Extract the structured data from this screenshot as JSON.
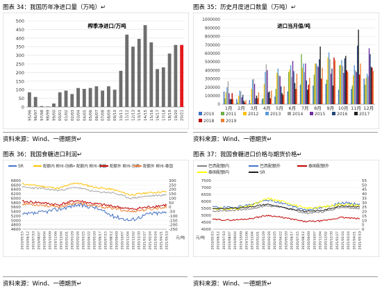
{
  "captions": {
    "fig34": "图表 34：我国历年净进口量（万吨）↵",
    "fig35": "图表 35：历史月度进口数量（万吨）↵",
    "fig36": "图表 36：我国食糖进口利润↵",
    "fig37": "图表 37：我国食糖进口价格与期货价格↵"
  },
  "sources": {
    "s1": "资料来源：Wind、一德期货↵",
    "s2": "资料来源：Wind、一德期货↵",
    "s3": "资料来源：Wind、一德期货↵",
    "s4": "资料来源：Wind、一德期货↵"
  },
  "chart_data": [
    {
      "id": "fig34",
      "type": "bar",
      "title": "榨季净进口/万吨",
      "categories": [
        "95/96",
        "96/97",
        "97/98",
        "98/99",
        "99/00",
        "00/01",
        "01/02",
        "02/03",
        "03/04",
        "04/05",
        "05/06",
        "06/07",
        "07/08",
        "08/09",
        "09/10",
        "10/11",
        "11/12",
        "12/13",
        "13/14",
        "14/15",
        "15/16",
        "16/17",
        "17/18",
        "18/19",
        "19/20",
        "20/21"
      ],
      "values": [
        85,
        58,
        5,
        3,
        20,
        85,
        95,
        75,
        110,
        105,
        110,
        120,
        95,
        120,
        100,
        210,
        420,
        350,
        395,
        475,
        375,
        220,
        230,
        310,
        360,
        360
      ],
      "highlight_index": 25,
      "colors": {
        "bar": "#6e6e6e",
        "highlight": "#e31a1c"
      },
      "ylim": [
        0,
        500
      ],
      "yticks": [
        0,
        50,
        100,
        150,
        200,
        250,
        300,
        350,
        400,
        450,
        500
      ]
    },
    {
      "id": "fig35",
      "type": "bar",
      "title": "进口当月值/吨",
      "categories": [
        "1月",
        "2月",
        "3月",
        "4月",
        "5月",
        "6月",
        "7月",
        "8月",
        "9月",
        "10月",
        "11月",
        "12月"
      ],
      "ylim": [
        0,
        1000000
      ],
      "yticks": [
        0,
        100000,
        200000,
        300000,
        400000,
        500000,
        600000,
        700000,
        800000,
        900000,
        1000000
      ],
      "series": [
        {
          "name": "2010",
          "color": "#4472c4",
          "values": [
            150000,
            60000,
            50000,
            60000,
            90000,
            150000,
            230000,
            220000,
            240000,
            170000,
            180000,
            300000
          ]
        },
        {
          "name": "2011",
          "color": "#70ad47",
          "values": [
            70000,
            20000,
            10000,
            70000,
            180000,
            380000,
            590000,
            350000,
            290000,
            460000,
            220000,
            230000
          ]
        },
        {
          "name": "2012",
          "color": "#ffc000",
          "values": [
            140000,
            100000,
            180000,
            240000,
            370000,
            410000,
            430000,
            480000,
            550000,
            460000,
            340000,
            310000
          ]
        },
        {
          "name": "2013",
          "color": "#5b9bd5",
          "values": [
            200000,
            160000,
            290000,
            380000,
            420000,
            460000,
            480000,
            480000,
            610000,
            520000,
            460000,
            360000
          ]
        },
        {
          "name": "2014",
          "color": "#a5a5a5",
          "values": [
            270000,
            150000,
            300000,
            470000,
            340000,
            320000,
            380000,
            460000,
            530000,
            450000,
            400000,
            330000
          ]
        },
        {
          "name": "2015",
          "color": "#7030a0",
          "values": [
            130000,
            80000,
            240000,
            400000,
            330000,
            510000,
            480000,
            440000,
            360000,
            370000,
            380000,
            660000
          ]
        },
        {
          "name": "2016",
          "color": "#264478",
          "values": [
            60000,
            110000,
            70000,
            140000,
            210000,
            390000,
            280000,
            530000,
            420000,
            540000,
            690000,
            590000
          ]
        },
        {
          "name": "2017",
          "color": "#1f1f1f",
          "values": [
            60000,
            40000,
            100000,
            150000,
            130000,
            250000,
            170000,
            680000,
            220000,
            570000,
            880000,
            440000
          ]
        },
        {
          "name": "2018",
          "color": "#c00000",
          "values": [
            130000,
            20000,
            70000,
            70000,
            110000,
            180000,
            230000,
            300000,
            550000,
            400000,
            350000,
            430000
          ]
        },
        {
          "name": "2019",
          "color": "#ed7d31",
          "values": [
            60000,
            50000,
            140000,
            160000,
            210000,
            360000,
            310000,
            430000,
            520000,
            380000,
            480000,
            390000
          ]
        }
      ]
    },
    {
      "id": "fig36",
      "type": "line",
      "xlabel": "",
      "ylabel": "",
      "y_left": {
        "ticks": [
          4600,
          4800,
          5000,
          5200,
          5400,
          5600,
          5800,
          6000,
          6200,
          6400,
          6600,
          6800
        ],
        "lim": [
          4600,
          6800
        ]
      },
      "y_right": {
        "ticks": [
          "-250",
          "-200",
          "-150",
          "-100",
          "-50",
          "0",
          "50",
          "100",
          "150",
          "200",
          "250",
          "300"
        ],
        "lim": [
          -250,
          300
        ],
        "unit": "元/吨"
      },
      "legend": [
        {
          "label": "SR",
          "color": "#4472c4"
        },
        {
          "label": "配额内 柳州-巴西",
          "color": "#ffc000"
        },
        {
          "label": "配额内 柳州-泰国",
          "color": "#a5a5a5"
        },
        {
          "label": "配额外 柳州-巴西",
          "color": "#c00000"
        },
        {
          "label": "配额外 柳州-泰国",
          "color": "#ed7d31"
        }
      ],
      "x_ticks": [
        "2019/05/15",
        "2019/06/12",
        "2019/07/10",
        "2019/08/07",
        "2019/09/04",
        "2019/10/09",
        "2019/11/06",
        "2019/12/04",
        "2020/01/01",
        "2020/01/29",
        "2020/02/26",
        "2020/03/25",
        "2020/04/22",
        "2020/05/20",
        "2020/06/17",
        "2020/07/15",
        "2020/08/12",
        "2020/09/09",
        "2020/10/07",
        "2020/11/04",
        "2020/12/02",
        "2020/12/30",
        "2021/01/27",
        "2021/02/24",
        "2021/03/24",
        "2021/04/21",
        "2021/05/19"
      ]
    },
    {
      "id": "fig37",
      "type": "line",
      "y_left": {
        "ticks": [
          4000,
          4500,
          5000,
          5500,
          6000,
          6500,
          7000,
          7500
        ],
        "lim": [
          4000,
          7500
        ],
        "unit": "元/吨"
      },
      "y_right": {
        "ticks": [
          0,
          5,
          10,
          15,
          20,
          25,
          30,
          35,
          40,
          45,
          50,
          55
        ],
        "lim": [
          0,
          55
        ]
      },
      "legend": [
        {
          "label": "巴西配额内",
          "color": "#7f7f7f"
        },
        {
          "label": "巴西配额外",
          "color": "#4472c4"
        },
        {
          "label": "泰国配额外",
          "color": "#c00000"
        },
        {
          "label": "泰国配额内",
          "color": "#ffff00"
        },
        {
          "label": "SR",
          "color": "#1f1f1f"
        }
      ],
      "x_ticks": [
        "2019/05/15",
        "2019/06/12",
        "2019/07/10",
        "2019/08/07",
        "2019/09/04",
        "2019/10/09",
        "2019/11/06",
        "2019/12/04",
        "2020/01/01",
        "2020/01/29",
        "2020/02/26",
        "2020/03/25",
        "2020/04/22",
        "2020/05/20",
        "2020/06/17",
        "2020/07/15",
        "2020/08/12",
        "2020/09/09",
        "2020/10/07",
        "2020/11/04",
        "2020/12/02",
        "2020/12/30",
        "2021/01/27",
        "2021/02/24",
        "2021/03/24",
        "2021/04/21",
        "2021/05/19"
      ]
    }
  ]
}
